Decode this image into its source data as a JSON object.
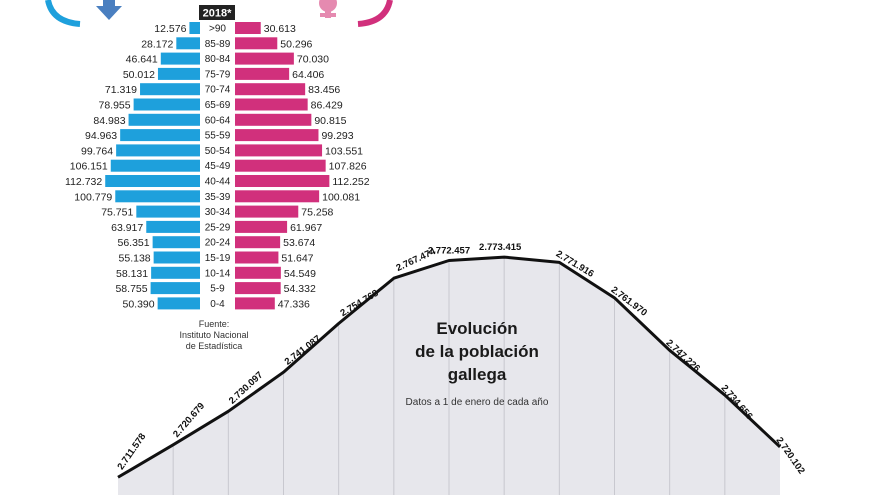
{
  "colors": {
    "male": "#1ea0dc",
    "female": "#d1307c",
    "line": "#111111",
    "area": "#e7e7ec"
  },
  "icons": [
    "male-symbol-icon",
    "female-symbol-icon"
  ],
  "chart_data": [
    {
      "type": "bar",
      "subtype": "population-pyramid",
      "year_label": "2018*",
      "categories": [
        ">90",
        "85-89",
        "80-84",
        "75-79",
        "70-74",
        "65-69",
        "60-64",
        "55-59",
        "50-54",
        "45-49",
        "40-44",
        "35-39",
        "30-34",
        "25-29",
        "20-24",
        "15-19",
        "10-14",
        "5-9",
        "0-4"
      ],
      "series": [
        {
          "values": [
            12576,
            28172,
            46641,
            50012,
            71319,
            78955,
            84983,
            94963,
            99764,
            106151,
            112732,
            100779,
            75751,
            63917,
            56351,
            55138,
            58131,
            58755,
            50390
          ],
          "labels": [
            "12.576",
            "28.172",
            "46.641",
            "50.012",
            "71.319",
            "78.955",
            "84.983",
            "94.963",
            "99.764",
            "106.151",
            "112.732",
            "100.779",
            "75.751",
            "63.917",
            "56.351",
            "55.138",
            "58.131",
            "58.755",
            "50.390"
          ]
        },
        {
          "values": [
            30613,
            50296,
            70030,
            64406,
            83456,
            86429,
            90815,
            99293,
            103551,
            107826,
            112252,
            100081,
            75258,
            61967,
            53674,
            51647,
            54549,
            54332,
            47336
          ],
          "labels": [
            "30.613",
            "50.296",
            "70.030",
            "64.406",
            "83.456",
            "86.429",
            "90.815",
            "99.293",
            "103.551",
            "107.826",
            "112.252",
            "100.081",
            "75.258",
            "61.967",
            "53.674",
            "51.647",
            "54.549",
            "54.332",
            "47.336"
          ]
        }
      ],
      "source_label": "Fuente:",
      "source_lines": [
        "Instituto Nacional",
        "de Estadística"
      ]
    },
    {
      "type": "area",
      "title_lines": [
        "Evolución",
        "de la población",
        "gallega"
      ],
      "subtitle": "Datos a 1 de enero de cada año",
      "values": [
        2711578,
        2720679,
        2730097,
        2741087,
        2754768,
        2767474,
        2772457,
        2773415,
        2771916,
        2761970,
        2747226,
        2734656,
        2720102
      ],
      "labels": [
        "2.711.578",
        "2.720.679",
        "2.730.097",
        "2.741.087",
        "2.754.768",
        "2.767.474",
        "2.772.457",
        "2.773.415",
        "2.771.916",
        "2.761.970",
        "2.747.226",
        "2.734.656",
        "2.720.102"
      ]
    }
  ]
}
